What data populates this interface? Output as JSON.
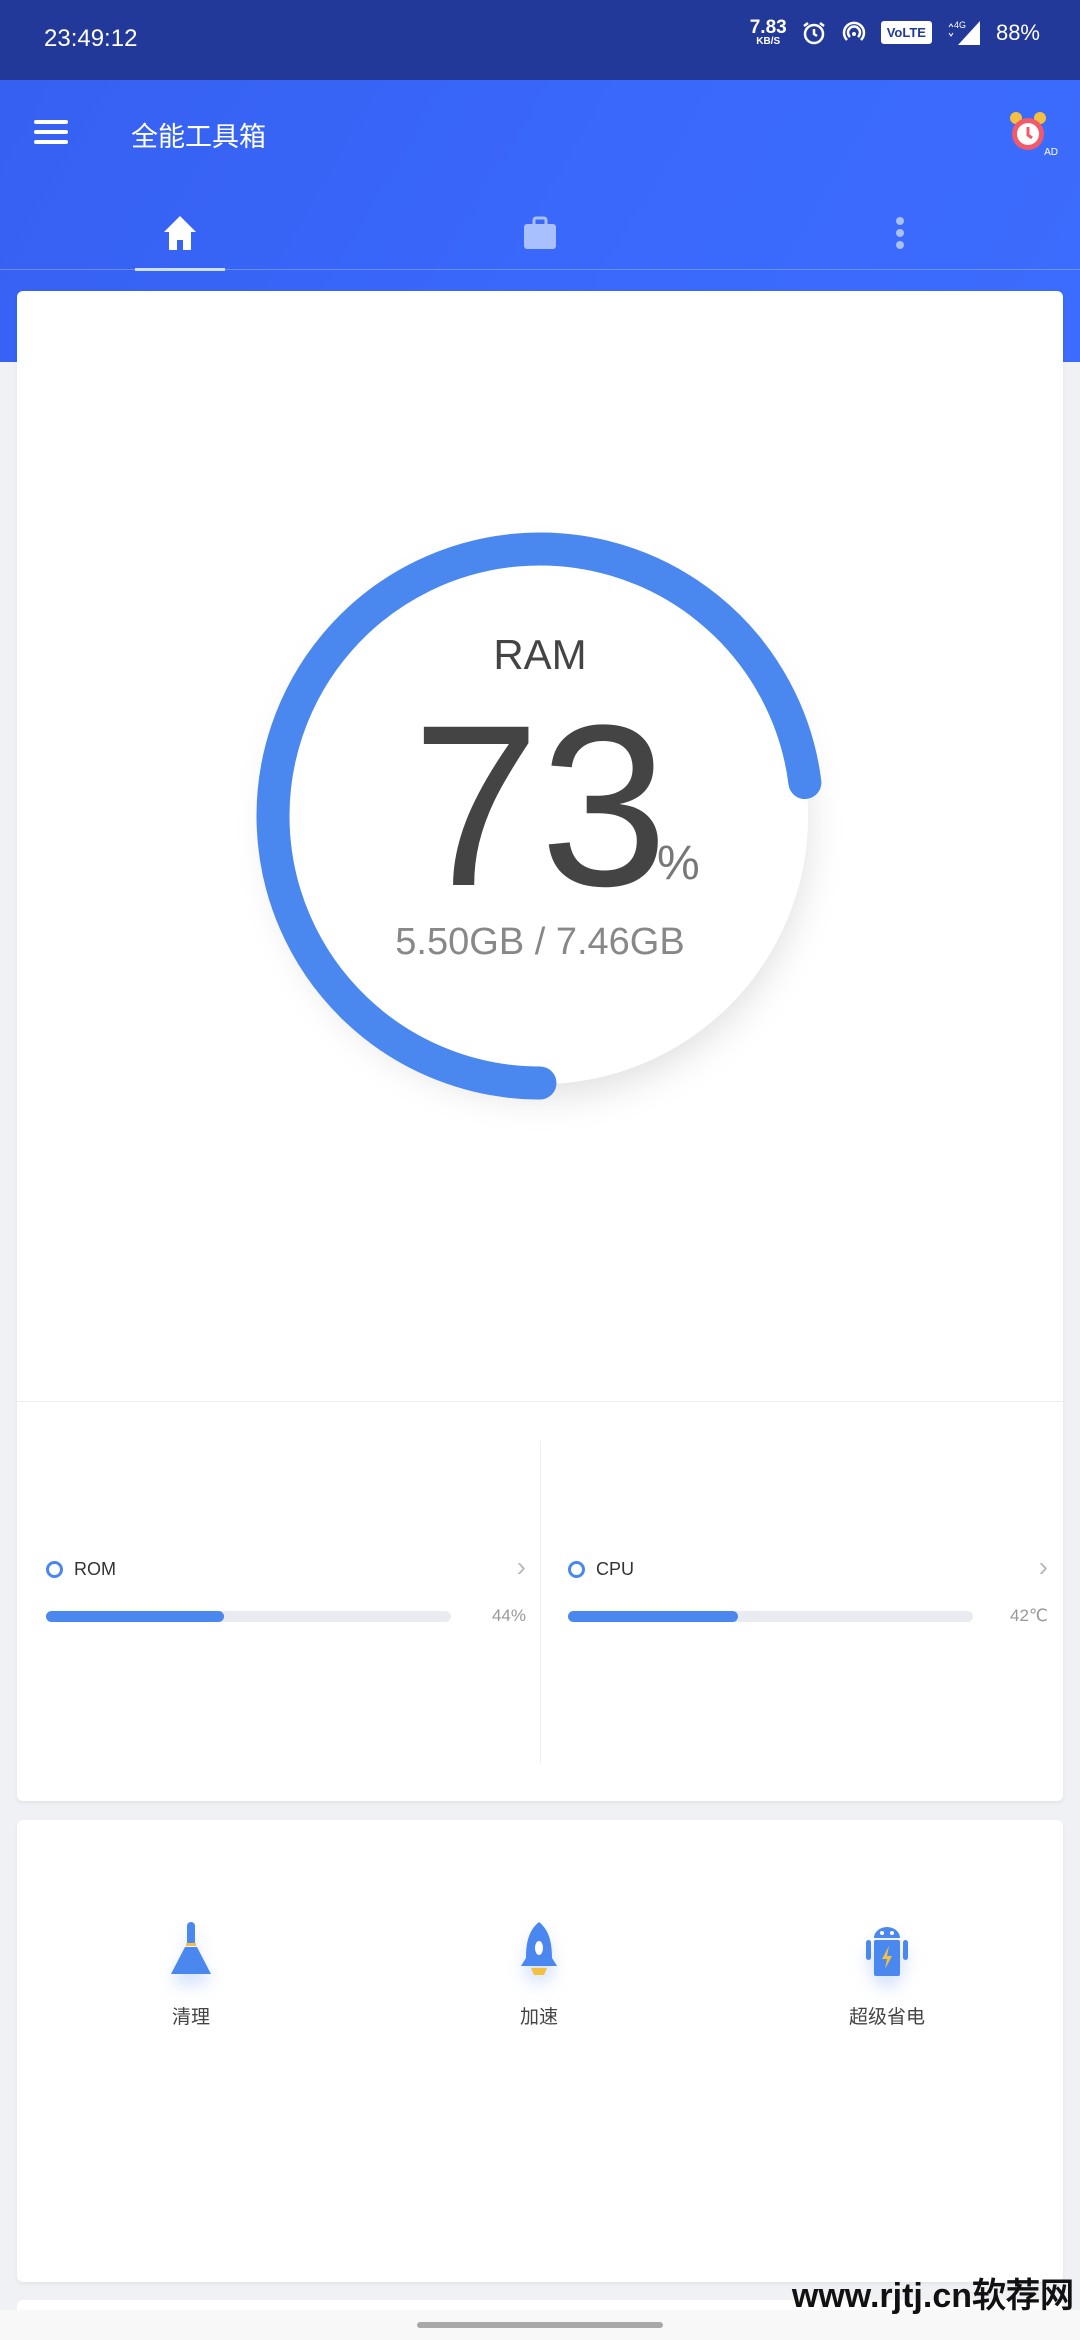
{
  "status_bar": {
    "time": "23:49:12",
    "net_speed": "7.83",
    "net_unit": "KB/S",
    "volte": "VoLTE",
    "network": "4G",
    "battery": "88%"
  },
  "app_bar": {
    "title": "全能工具箱",
    "ad_badge": "AD"
  },
  "tabs": [
    {
      "icon": "home-icon",
      "active": true
    },
    {
      "icon": "briefcase-icon",
      "active": false
    },
    {
      "icon": "more-vert-icon",
      "active": false
    }
  ],
  "ram": {
    "label": "RAM",
    "percent": "73",
    "percent_sign": "%",
    "usage": "5.50GB / 7.46GB",
    "fraction": 0.73
  },
  "stats": [
    {
      "name": "ROM",
      "value": "44%",
      "fraction": 0.44
    },
    {
      "name": "CPU",
      "value": "42℃",
      "fraction": 0.42
    }
  ],
  "tools": [
    {
      "label": "清理",
      "icon": "broom-icon"
    },
    {
      "label": "加速",
      "icon": "rocket-icon"
    },
    {
      "label": "超级省电",
      "icon": "android-battery-icon"
    }
  ],
  "watermark": "www.rjtj.cn软荐网",
  "colors": {
    "accent": "#4a87ee",
    "app_bar": "#3a67f5",
    "status_bar": "#22399a"
  }
}
